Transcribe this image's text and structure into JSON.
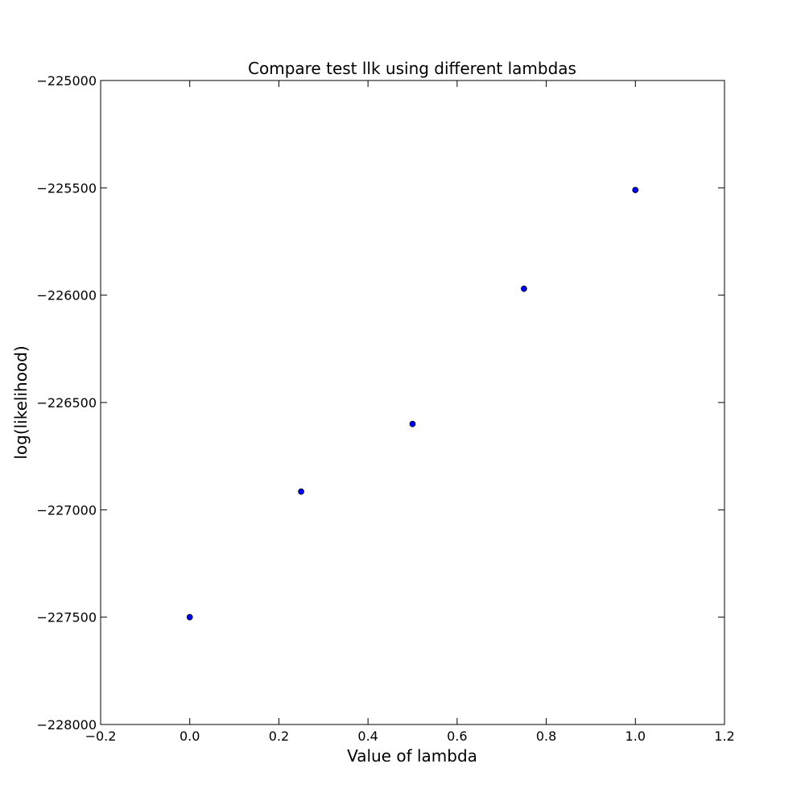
{
  "chart_data": {
    "type": "scatter",
    "title": "Compare test llk using different lambdas",
    "xlabel": "Value of lambda",
    "ylabel": "log(likelihood)",
    "xlim": [
      -0.2,
      1.2
    ],
    "ylim": [
      -228000,
      -225000
    ],
    "x_ticks": [
      -0.2,
      0.0,
      0.2,
      0.4,
      0.6,
      0.8,
      1.0,
      1.2
    ],
    "x_tick_labels": [
      "−0.2",
      "0.0",
      "0.2",
      "0.4",
      "0.6",
      "0.8",
      "1.0",
      "1.2"
    ],
    "y_ticks": [
      -225000,
      -225500,
      -226000,
      -226500,
      -227000,
      -227500,
      -228000
    ],
    "y_tick_labels": [
      "−225000",
      "−225500",
      "−226000",
      "−226500",
      "−227000",
      "−227500",
      "−228000"
    ],
    "grid": false,
    "legend": "none",
    "marker_color": "#0000ff",
    "points": [
      {
        "x": 0.0,
        "y": -227500
      },
      {
        "x": 0.25,
        "y": -226915
      },
      {
        "x": 0.5,
        "y": -226600
      },
      {
        "x": 0.75,
        "y": -225970
      },
      {
        "x": 1.0,
        "y": -225510
      }
    ]
  }
}
